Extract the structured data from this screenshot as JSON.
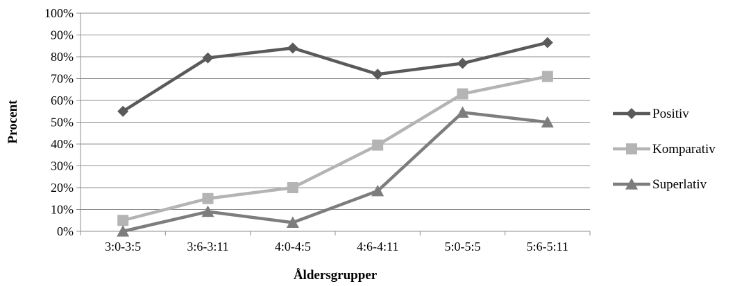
{
  "chart_data": {
    "type": "line",
    "title": "",
    "xlabel": "Åldersgrupper",
    "ylabel": "Procent",
    "categories": [
      "3:0-3:5",
      "3:6-3:11",
      "4:0-4:5",
      "4:6-4:11",
      "5:0-5:5",
      "5:6-5:11"
    ],
    "ylim": [
      0,
      100
    ],
    "yticks": [
      "0%",
      "10%",
      "20%",
      "30%",
      "40%",
      "50%",
      "60%",
      "70%",
      "80%",
      "90%",
      "100%"
    ],
    "grid": true,
    "legend_position": "right",
    "series": [
      {
        "name": "Positiv",
        "values": [
          55,
          79.5,
          84,
          72,
          77,
          86.5
        ],
        "color": "#5a5a5a",
        "marker": "diamond"
      },
      {
        "name": "Komparativ",
        "values": [
          5,
          15,
          20,
          39.5,
          63,
          71
        ],
        "color": "#b4b4b4",
        "marker": "square"
      },
      {
        "name": "Superlativ",
        "values": [
          0,
          9,
          4,
          18.5,
          54.5,
          50
        ],
        "color": "#7d7d7d",
        "marker": "triangle"
      }
    ]
  }
}
